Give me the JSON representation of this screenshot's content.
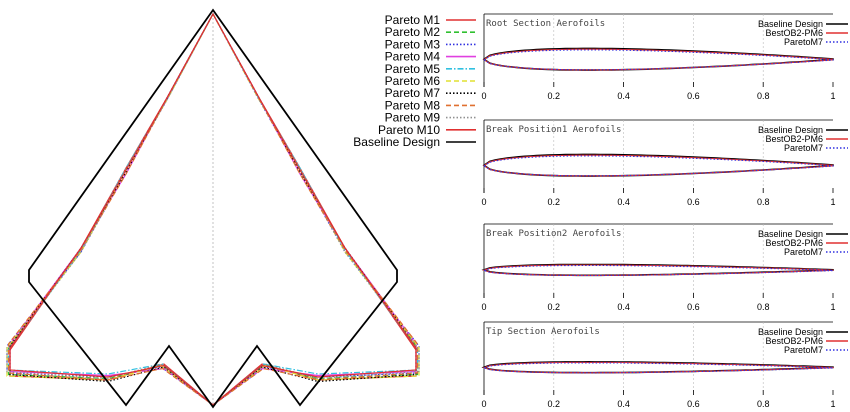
{
  "chart_data": [
    {
      "type": "line",
      "chart_kind": "wing planform comparison",
      "legend": [
        {
          "name": "Pareto M1",
          "color": "#e03030",
          "dash": "solid"
        },
        {
          "name": "Pareto M2",
          "color": "#30c030",
          "dash": "dashed"
        },
        {
          "name": "Pareto M3",
          "color": "#3030e0",
          "dash": "dotted"
        },
        {
          "name": "Pareto M4",
          "color": "#e040e0",
          "dash": "solid"
        },
        {
          "name": "Pareto M5",
          "color": "#30c0e0",
          "dash": "dashdot"
        },
        {
          "name": "Pareto M6",
          "color": "#e0e030",
          "dash": "dashed"
        },
        {
          "name": "Pareto M7",
          "color": "#000000",
          "dash": "dotted"
        },
        {
          "name": "Pareto M8",
          "color": "#e07030",
          "dash": "dashed"
        },
        {
          "name": "Pareto M9",
          "color": "#909090",
          "dash": "dotted"
        },
        {
          "name": "Pareto M10",
          "color": "#e03030",
          "dash": "solid"
        },
        {
          "name": "Baseline Design",
          "color": "#000000",
          "dash": "solid"
        }
      ],
      "legend_position": "top-right",
      "centerline": true
    },
    {
      "type": "line",
      "chart_kind": "aerofoil section comparison",
      "x_ticks": [
        "0",
        "0.2",
        "0.4",
        "0.6",
        "0.8",
        "1"
      ],
      "xlim": [
        0,
        1
      ],
      "grid": true,
      "legend_position": "top-right",
      "series_styles": [
        {
          "name": "Baseline Design",
          "color": "#000000",
          "dash": "solid"
        },
        {
          "name": "BestOB2-PM6",
          "color": "#e03030",
          "dash": "solid"
        },
        {
          "name": "ParetoM7",
          "color": "#3030e0",
          "dash": "dotted"
        }
      ],
      "panels": [
        {
          "title": "Root Section Aerofoils",
          "thickness_ratio": 0.12
        },
        {
          "title": "Break Position1 Aerofoils",
          "thickness_ratio": 0.12
        },
        {
          "title": "Break Position2 Aerofoils",
          "thickness_ratio": 0.06
        },
        {
          "title": "Tip Section Aerofoils",
          "thickness_ratio": 0.06
        }
      ]
    }
  ]
}
